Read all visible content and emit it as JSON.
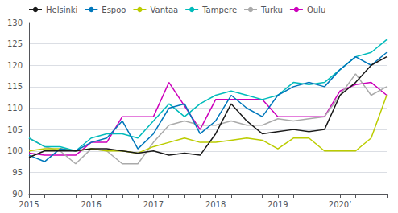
{
  "chart_data": {
    "type": "line",
    "categories": [
      "2015",
      null,
      null,
      null,
      "2016",
      null,
      null,
      null,
      "2017",
      null,
      null,
      null,
      "2018",
      null,
      null,
      null,
      "2019",
      null,
      null,
      null,
      "2020’",
      null,
      null,
      null
    ],
    "series": [
      {
        "name": "Helsinki",
        "color": "#1a1a1a",
        "values": [
          98.5,
          100,
          100,
          100,
          100.5,
          100.5,
          100,
          99.5,
          100,
          99,
          99.5,
          99,
          104,
          111,
          107,
          104,
          104.5,
          105,
          104.5,
          105,
          113,
          116,
          120,
          122
        ]
      },
      {
        "name": "Espoo",
        "color": "#0077bb",
        "values": [
          99,
          97.5,
          100.5,
          100,
          102,
          103,
          107,
          100.5,
          104,
          110,
          111,
          104,
          107,
          113,
          110,
          108,
          113,
          115,
          116,
          115,
          119,
          122,
          120,
          123
        ]
      },
      {
        "name": "Vantaa",
        "color": "#bbcc00",
        "values": [
          100,
          100.5,
          100.5,
          100,
          100.5,
          100,
          100,
          99.5,
          101,
          102,
          103,
          102,
          102,
          102.5,
          103,
          102.5,
          100.5,
          103,
          103,
          100,
          100,
          100,
          103,
          113
        ]
      },
      {
        "name": "Tampere",
        "color": "#00bbbb",
        "values": [
          103,
          101,
          101,
          100,
          103,
          104,
          104,
          103,
          107,
          111,
          108,
          111,
          113,
          114,
          113,
          112,
          113,
          116,
          115.5,
          116,
          119,
          122,
          123,
          126
        ]
      },
      {
        "name": "Turku",
        "color": "#aaaaaa",
        "values": [
          103,
          101,
          100,
          97,
          100.5,
          100,
          97,
          97,
          102,
          106,
          107,
          106,
          106,
          107,
          106,
          106,
          107.5,
          107,
          107.5,
          108,
          113,
          118,
          113,
          115
        ]
      },
      {
        "name": "Oulu",
        "color": "#cc00bb",
        "values": [
          99.5,
          99,
          99,
          99,
          102,
          102,
          108,
          108,
          108,
          116,
          110.5,
          105,
          112,
          112,
          112,
          112,
          108,
          108,
          108,
          108,
          114,
          115.5,
          116,
          113
        ]
      }
    ],
    "ylim": [
      90,
      130
    ],
    "yticks": [
      90,
      95,
      100,
      105,
      110,
      115,
      120,
      125,
      130
    ],
    "grid": true,
    "legend": "upper left"
  }
}
